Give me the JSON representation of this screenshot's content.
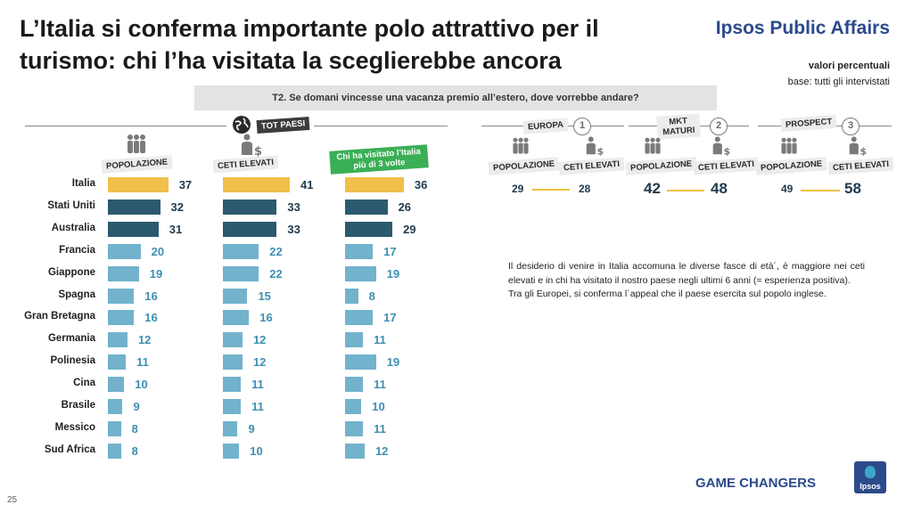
{
  "header": {
    "title": "L’Italia si conferma importante polo attrattivo per il turismo: chi l’ha visitata la sceglierebbe ancora",
    "brand": "Ipsos Public Affairs",
    "note1": "valori percentuali",
    "note2": "base: tutti gli intervistati"
  },
  "question": "T2. Se domani vincesse una vacanza premio all’estero, dove vorrebbe andare?",
  "labels": {
    "tot_paesi": "TOT PAESI",
    "popolazione": "POPOLAZIONE",
    "ceti_elevati": "CETI ELEVATI",
    "visited": "Chi ha visitato l’Italia più di 3 volte"
  },
  "segments": [
    {
      "name": "EUROPA",
      "num": "1",
      "pop": "29",
      "ceti": "28"
    },
    {
      "name": "MKT MATURI",
      "num": "2",
      "pop": "42",
      "ceti": "48"
    },
    {
      "name": "PROSPECT",
      "num": "3",
      "pop": "49",
      "ceti": "58"
    }
  ],
  "colors": {
    "gold": "#f0c04a",
    "dark_teal": "#2b5a6e",
    "light_blue": "#72b2cc",
    "value_dark": "#1f3a4d",
    "value_light": "#3d8fb2"
  },
  "chart_data": {
    "type": "bar",
    "orientation": "horizontal",
    "categories": [
      "Italia",
      "Stati Uniti",
      "Australia",
      "Francia",
      "Giappone",
      "Spagna",
      "Gran Bretagna",
      "Germania",
      "Polinesia",
      "Cina",
      "Brasile",
      "Messico",
      "Sud Africa"
    ],
    "series": [
      {
        "name": "POPOLAZIONE",
        "values": [
          37,
          32,
          31,
          20,
          19,
          16,
          16,
          12,
          11,
          10,
          9,
          8,
          8
        ]
      },
      {
        "name": "CETI ELEVATI",
        "values": [
          41,
          33,
          33,
          22,
          22,
          15,
          16,
          12,
          12,
          11,
          11,
          9,
          10
        ]
      },
      {
        "name": "Chi ha visitato l’Italia più di 3 volte",
        "values": [
          36,
          26,
          29,
          17,
          19,
          8,
          17,
          11,
          19,
          11,
          10,
          11,
          12
        ]
      }
    ]
  },
  "body_text": {
    "p1": "Il desiderio di venire in Italia accomuna le diverse fasce di età´, è maggiore nei ceti elevati e in chi ha visitato il nostro paese negli ultimi 6 anni (= esperienza positiva).",
    "p2": "Tra gli Europei, si conferma l´appeal che il paese esercita sul popolo inglese."
  },
  "footer": {
    "game_changers": "GAME CHANGERS",
    "logo": "Ipsos",
    "page": "25"
  }
}
